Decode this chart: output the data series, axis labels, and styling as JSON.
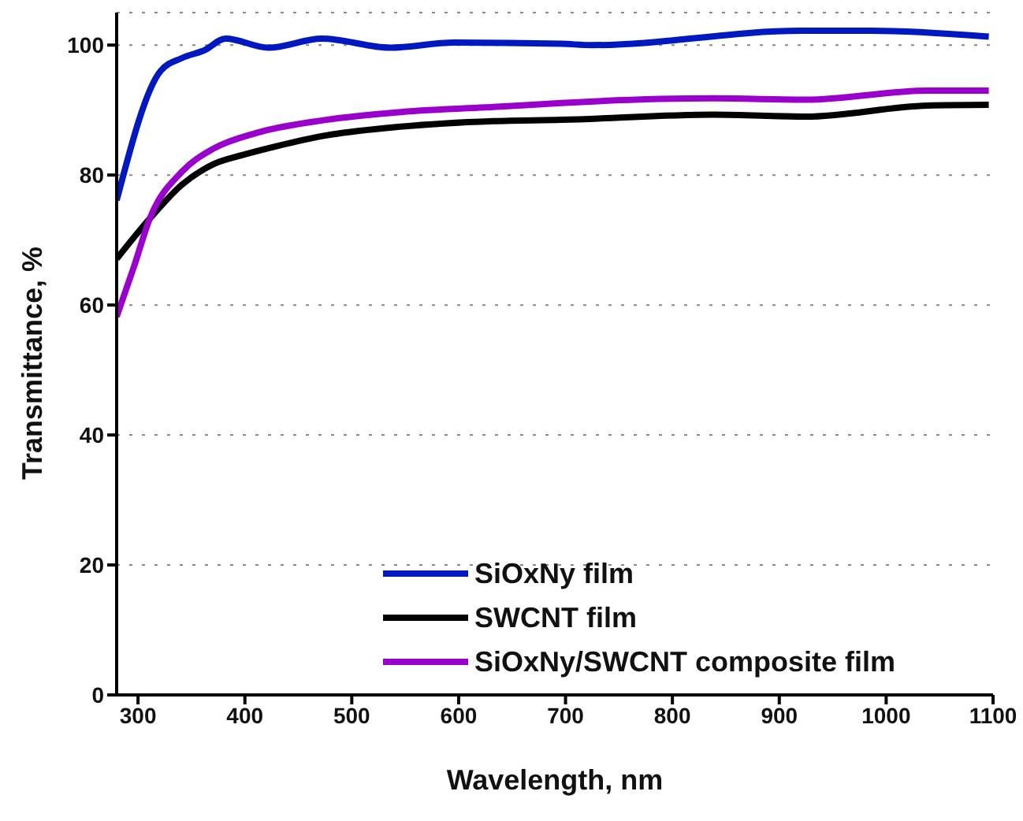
{
  "chart_data": {
    "type": "line",
    "xlabel": "Wavelength, nm",
    "ylabel": "Transmittance, %",
    "xlim": [
      280,
      1100
    ],
    "xticks": [
      300,
      400,
      500,
      600,
      700,
      800,
      900,
      1000,
      1100
    ],
    "ylim": [
      0,
      105
    ],
    "yticks": [
      0,
      20,
      40,
      60,
      80,
      100
    ],
    "grid": "y",
    "legend": "bottom right",
    "line_style": "solid",
    "marker": "none",
    "series": [
      {
        "name": "SiOxNy film",
        "color": "#0018c0",
        "x": [
          280,
          321,
          341,
          362,
          382,
          422,
          472,
          536,
          596,
          696,
          725,
          920,
          986,
          1096
        ],
        "values": [
          76.1,
          96,
          98,
          99.2,
          101,
          99.6,
          101,
          99.6,
          100.4,
          100.2,
          100,
          102.2,
          102.2,
          101.3
        ]
      },
      {
        "name": "SWCNT film",
        "color": "#000000",
        "x": [
          280,
          311,
          341,
          371,
          396,
          431,
          476,
          536,
          632,
          696,
          839,
          925,
          1039,
          1096
        ],
        "values": [
          67.1,
          73.3,
          78.5,
          81.7,
          83,
          84.5,
          86.1,
          87.3,
          88.3,
          88.5,
          89.3,
          89,
          90.7,
          90.8
        ]
      },
      {
        "name": "SiOxNy/SWCNT composite film",
        "color": "#9900cc",
        "x": [
          280,
          296,
          311,
          341,
          371,
          411,
          476,
          546,
          646,
          696,
          839,
          925,
          1039,
          1096
        ],
        "values": [
          58.2,
          65.8,
          73.3,
          80.5,
          84.1,
          86.5,
          88.5,
          89.7,
          90.6,
          91.1,
          91.8,
          91.6,
          93,
          93
        ]
      }
    ]
  }
}
